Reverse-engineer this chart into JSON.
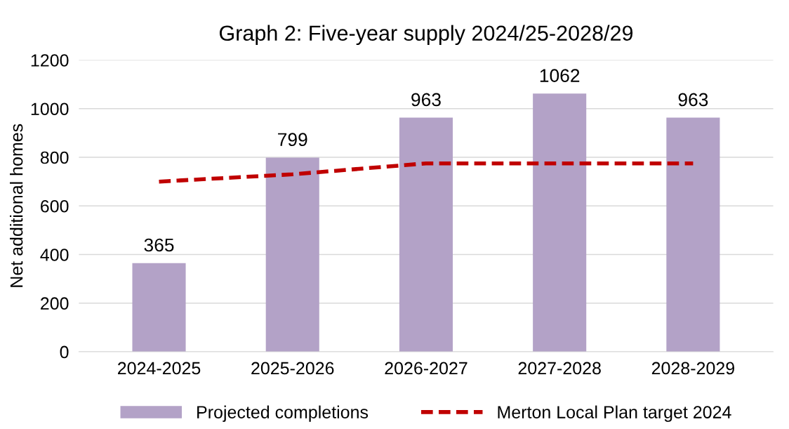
{
  "chart_data": {
    "type": "bar",
    "title": "Graph 2: Five-year supply 2024/25-2028/29",
    "ylabel": "Net additional homes",
    "categories": [
      "2024-2025",
      "2025-2026",
      "2026-2027",
      "2027-2028",
      "2028-2029"
    ],
    "series": [
      {
        "name": "Projected completions",
        "color": "#b3a2c7",
        "values": [
          365,
          799,
          963,
          1062,
          963
        ],
        "value_labels": [
          "365",
          "799",
          "963",
          "1062",
          "963"
        ]
      },
      {
        "name": "Merton Local Plan target 2024",
        "type": "line",
        "color": "#c00000",
        "line_style": "dashed",
        "values": [
          700,
          730,
          775,
          775,
          775
        ]
      }
    ],
    "ylim": [
      0,
      1200
    ],
    "yticks": [
      0,
      200,
      400,
      600,
      800,
      1000,
      1200
    ],
    "grid": "y",
    "legend": "bottom"
  }
}
